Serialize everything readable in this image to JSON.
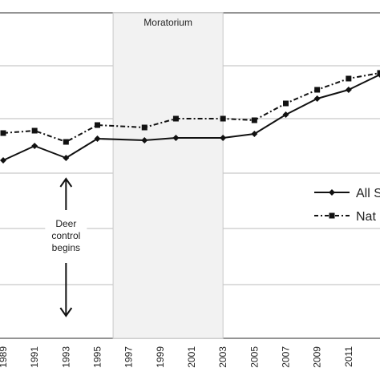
{
  "chart_data": {
    "type": "line",
    "x": [
      1989,
      1991,
      1993,
      1995,
      1998,
      2000,
      2003,
      2005,
      2007,
      2009,
      2011,
      2013
    ],
    "x_tick_labels": [
      "1989",
      "1991",
      "1993",
      "1995",
      "1997",
      "1999",
      "2001",
      "2003",
      "2005",
      "2007",
      "2009",
      "2011"
    ],
    "series": [
      {
        "name": "All S",
        "marker": "diamond",
        "line_style": "solid",
        "color": "#111111",
        "values": [
          200,
          182,
          197,
          173,
          175,
          172,
          172,
          167,
          143,
          123,
          112,
          93
        ]
      },
      {
        "name": "Nat",
        "marker": "square",
        "line_style": "dash-dot",
        "color": "#111111",
        "values": [
          166,
          163,
          177,
          156,
          159,
          148,
          148,
          150,
          129,
          112,
          98,
          91
        ]
      }
    ],
    "grid": true,
    "legend_position": "right",
    "annotations": {
      "shaded_region_label": "Moratorium",
      "shaded_region": [
        1996,
        2003
      ],
      "arrow_label_lines": [
        "Deer",
        "control",
        "begins"
      ],
      "arrow_x": 1993
    },
    "colors": {
      "line": "#111111",
      "grid": "#bbbbbb",
      "shade_fill": "#f2f2f2",
      "shade_stroke": "#c8c8c8"
    }
  }
}
